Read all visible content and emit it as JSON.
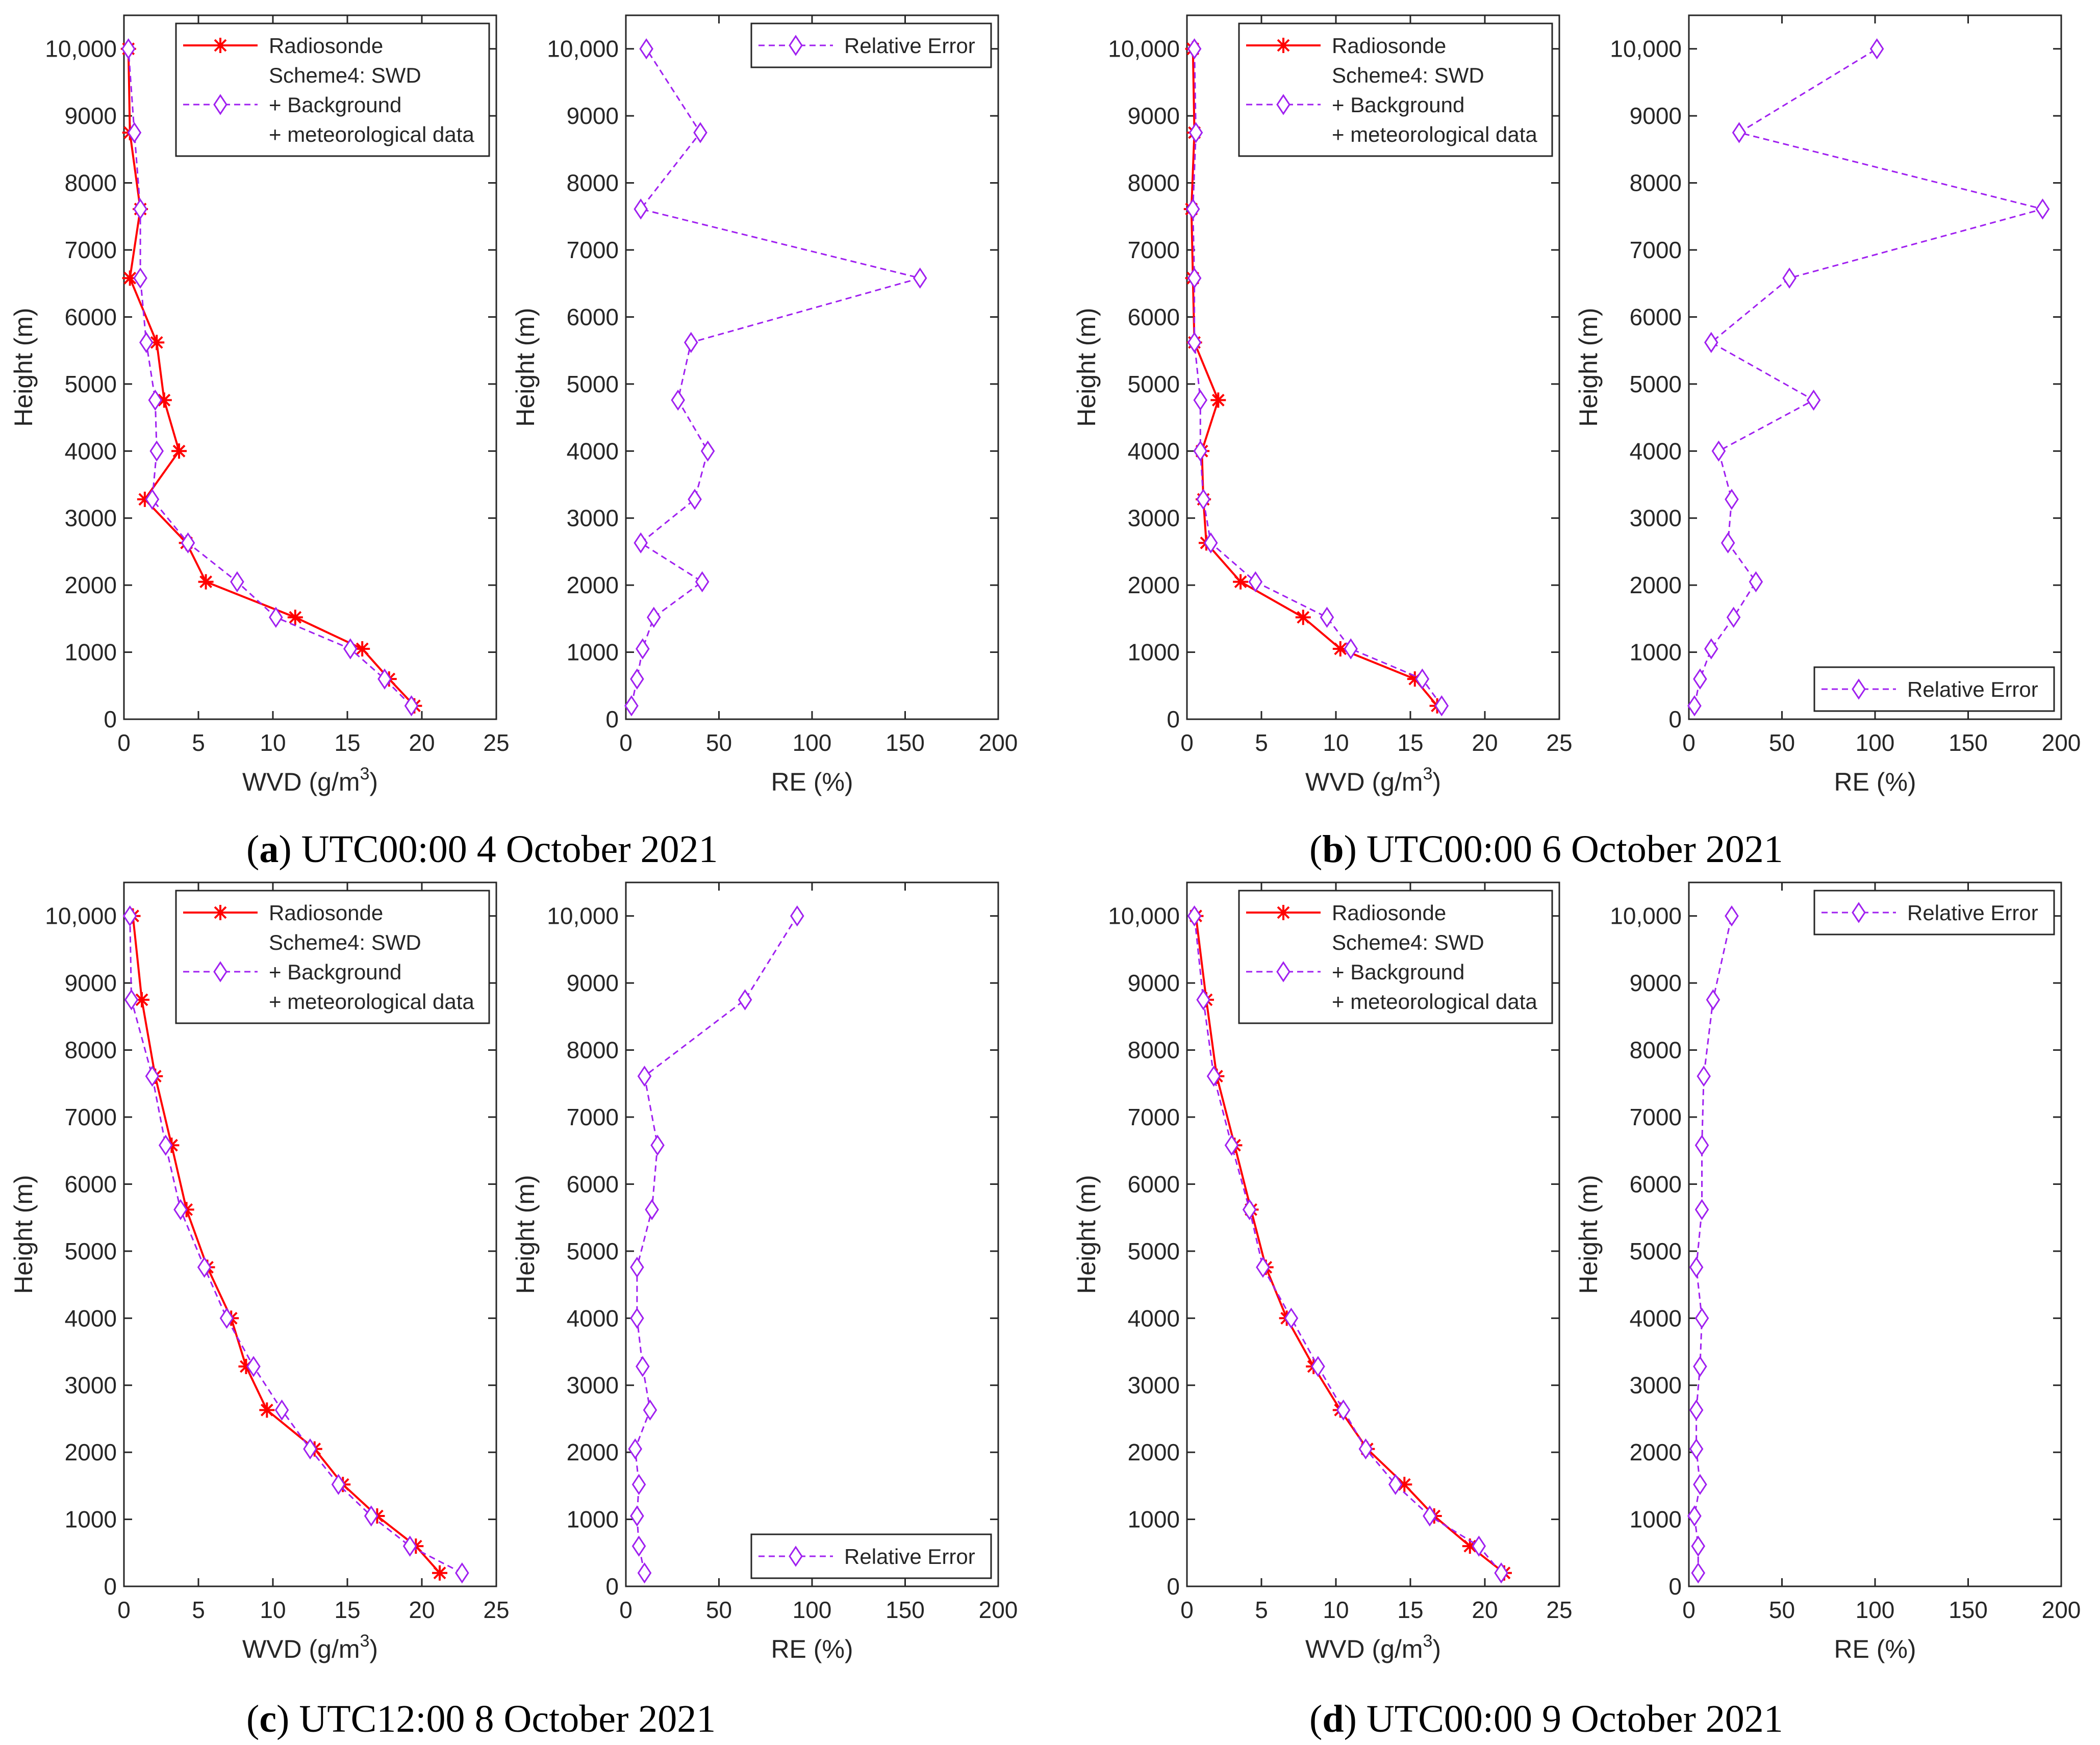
{
  "chart_data": [
    {
      "type": "line",
      "panel": "a",
      "caption": {
        "letter": "a",
        "text": "UTC00:00 4 October 2021"
      },
      "left": {
        "xlabel": "WVD (g/m3)",
        "xlabel_base": "WVD (g/m",
        "xlabel_sup": "3",
        "xlabel_end": ")",
        "ylabel": "Height (m)",
        "xlim": [
          0,
          25
        ],
        "ylim": [
          0,
          10500
        ],
        "xticks": [
          "0",
          "5",
          "10",
          "15",
          "20",
          "25"
        ],
        "yticks": [
          "0",
          "1000",
          "2000",
          "3000",
          "4000",
          "5000",
          "6000",
          "7000",
          "8000",
          "9000",
          "10,000"
        ],
        "heights": [
          200,
          600,
          1050,
          1520,
          2050,
          2630,
          3280,
          4000,
          4760,
          5620,
          6580,
          7610,
          8750,
          10000
        ],
        "legend_position": "top-right",
        "series": [
          {
            "name": "Radiosonde",
            "marker": "asterisk",
            "color": "#ff0000",
            "values": [
              19.5,
              17.8,
              16.0,
              11.5,
              5.5,
              4.2,
              1.4,
              3.7,
              2.7,
              2.2,
              0.4,
              1.1,
              0.4,
              0.3
            ]
          },
          {
            "name": "Scheme4: SWD",
            "legend_lines": [
              "Scheme4: SWD",
              "+ Background",
              "+ meteorological data"
            ],
            "marker": "diamond",
            "color": "#a020f0",
            "values": [
              19.3,
              17.5,
              15.2,
              10.2,
              7.6,
              4.3,
              1.9,
              2.2,
              2.1,
              1.5,
              1.1,
              1.1,
              0.7,
              0.3
            ]
          }
        ]
      },
      "right": {
        "xlabel": "RE (%)",
        "ylabel": "Height (m)",
        "xlim": [
          0,
          200
        ],
        "ylim": [
          0,
          10500
        ],
        "xticks": [
          "0",
          "50",
          "100",
          "150",
          "200"
        ],
        "yticks": [
          "0",
          "1000",
          "2000",
          "3000",
          "4000",
          "5000",
          "6000",
          "7000",
          "8000",
          "9000",
          "10,000"
        ],
        "heights": [
          200,
          600,
          1050,
          1520,
          2050,
          2630,
          3280,
          4000,
          4760,
          5620,
          6580,
          7610,
          8750,
          10000
        ],
        "legend_position": "top-right",
        "series": [
          {
            "name": "Relative Error",
            "marker": "diamond",
            "color": "#a020f0",
            "values": [
              3,
              6,
              9,
              15,
              41,
              8,
              37,
              44,
              28,
              35,
              158,
              8,
              40,
              11
            ]
          }
        ]
      }
    },
    {
      "type": "line",
      "panel": "b",
      "caption": {
        "letter": "b",
        "text": "UTC00:00 6 October 2021"
      },
      "left": {
        "xlabel": "WVD (g/m3)",
        "xlabel_base": "WVD (g/m",
        "xlabel_sup": "3",
        "xlabel_end": ")",
        "ylabel": "Height (m)",
        "xlim": [
          0,
          25
        ],
        "ylim": [
          0,
          10500
        ],
        "xticks": [
          "0",
          "5",
          "10",
          "15",
          "20",
          "25"
        ],
        "yticks": [
          "0",
          "1000",
          "2000",
          "3000",
          "4000",
          "5000",
          "6000",
          "7000",
          "8000",
          "9000",
          "10,000"
        ],
        "heights": [
          200,
          600,
          1050,
          1520,
          2050,
          2630,
          3280,
          4000,
          4760,
          5620,
          6580,
          7610,
          8750,
          10000
        ],
        "legend_position": "top-right",
        "series": [
          {
            "name": "Radiosonde",
            "marker": "asterisk",
            "color": "#ff0000",
            "values": [
              16.8,
              15.3,
              10.3,
              7.8,
              3.6,
              1.3,
              1.1,
              1.0,
              2.1,
              0.5,
              0.4,
              0.3,
              0.5,
              0.4
            ]
          },
          {
            "name": "Scheme4: SWD",
            "legend_lines": [
              "Scheme4: SWD",
              "+ Background",
              "+ meteorological data"
            ],
            "marker": "diamond",
            "color": "#a020f0",
            "values": [
              17.1,
              15.8,
              11.0,
              9.4,
              4.6,
              1.6,
              1.1,
              0.9,
              0.9,
              0.5,
              0.5,
              0.4,
              0.6,
              0.5
            ]
          }
        ]
      },
      "right": {
        "xlabel": "RE (%)",
        "ylabel": "Height (m)",
        "xlim": [
          0,
          200
        ],
        "ylim": [
          0,
          10500
        ],
        "xticks": [
          "0",
          "50",
          "100",
          "150",
          "200"
        ],
        "yticks": [
          "0",
          "1000",
          "2000",
          "3000",
          "4000",
          "5000",
          "6000",
          "7000",
          "8000",
          "9000",
          "10,000"
        ],
        "heights": [
          200,
          600,
          1050,
          1520,
          2050,
          2630,
          3280,
          4000,
          4760,
          5620,
          6580,
          7610,
          8750,
          10000
        ],
        "legend_position": "bottom-right",
        "series": [
          {
            "name": "Relative Error",
            "marker": "diamond",
            "color": "#a020f0",
            "values": [
              3,
              6,
              12,
              24,
              36,
              21,
              23,
              16,
              67,
              12,
              54,
              190,
              27,
              101
            ]
          }
        ]
      }
    },
    {
      "type": "line",
      "panel": "c",
      "caption": {
        "letter": "c",
        "text": "UTC12:00 8 October 2021"
      },
      "left": {
        "xlabel": "WVD (g/m3)",
        "xlabel_base": "WVD (g/m",
        "xlabel_sup": "3",
        "xlabel_end": ")",
        "ylabel": "Height (m)",
        "xlim": [
          0,
          25
        ],
        "ylim": [
          0,
          10500
        ],
        "xticks": [
          "0",
          "5",
          "10",
          "15",
          "20",
          "25"
        ],
        "yticks": [
          "0",
          "1000",
          "2000",
          "3000",
          "4000",
          "5000",
          "6000",
          "7000",
          "8000",
          "9000",
          "10,000"
        ],
        "heights": [
          200,
          600,
          1050,
          1520,
          2050,
          2630,
          3280,
          4000,
          4760,
          5620,
          6580,
          7610,
          8750,
          10000
        ],
        "legend_position": "top-right",
        "series": [
          {
            "name": "Radiosonde",
            "marker": "asterisk",
            "color": "#ff0000",
            "values": [
              21.2,
              19.6,
              17.0,
              14.7,
              12.8,
              9.6,
              8.2,
              7.2,
              5.6,
              4.2,
              3.2,
              2.1,
              1.2,
              0.6
            ]
          },
          {
            "name": "Scheme4: SWD",
            "legend_lines": [
              "Scheme4: SWD",
              "+ Background",
              "+ meteorological data"
            ],
            "marker": "diamond",
            "color": "#a020f0",
            "values": [
              22.7,
              19.2,
              16.6,
              14.4,
              12.5,
              10.6,
              8.7,
              6.9,
              5.4,
              3.8,
              2.8,
              1.9,
              0.5,
              0.4
            ]
          }
        ]
      },
      "right": {
        "xlabel": "RE (%)",
        "ylabel": "Height (m)",
        "xlim": [
          0,
          200
        ],
        "ylim": [
          0,
          10500
        ],
        "xticks": [
          "0",
          "50",
          "100",
          "150",
          "200"
        ],
        "yticks": [
          "0",
          "1000",
          "2000",
          "3000",
          "4000",
          "5000",
          "6000",
          "7000",
          "8000",
          "9000",
          "10,000"
        ],
        "heights": [
          200,
          600,
          1050,
          1520,
          2050,
          2630,
          3280,
          4000,
          4760,
          5620,
          6580,
          7610,
          8750,
          10000
        ],
        "legend_position": "bottom-right",
        "series": [
          {
            "name": "Relative Error",
            "marker": "diamond",
            "color": "#a020f0",
            "values": [
              10,
              7,
              6,
              7,
              5,
              13,
              9,
              6,
              6,
              14,
              17,
              10,
              64,
              92
            ]
          }
        ]
      }
    },
    {
      "type": "line",
      "panel": "d",
      "caption": {
        "letter": "d",
        "text": "UTC00:00 9 October 2021"
      },
      "left": {
        "xlabel": "WVD (g/m3)",
        "xlabel_base": "WVD (g/m",
        "xlabel_sup": "3",
        "xlabel_end": ")",
        "ylabel": "Height (m)",
        "xlim": [
          0,
          25
        ],
        "ylim": [
          0,
          10500
        ],
        "xticks": [
          "0",
          "5",
          "10",
          "15",
          "20",
          "25"
        ],
        "yticks": [
          "0",
          "1000",
          "2000",
          "3000",
          "4000",
          "5000",
          "6000",
          "7000",
          "8000",
          "9000",
          "10,000"
        ],
        "heights": [
          200,
          600,
          1050,
          1520,
          2050,
          2630,
          3280,
          4000,
          4760,
          5620,
          6580,
          7610,
          8750,
          10000
        ],
        "legend_position": "top-right",
        "series": [
          {
            "name": "Radiosonde",
            "marker": "asterisk",
            "color": "#ff0000",
            "values": [
              21.3,
              19.0,
              16.6,
              14.6,
              12.1,
              10.3,
              8.5,
              6.7,
              5.3,
              4.3,
              3.2,
              2.0,
              1.3,
              0.6
            ]
          },
          {
            "name": "Scheme4: SWD",
            "legend_lines": [
              "Scheme4: SWD",
              "+ Background",
              "+ meteorological data"
            ],
            "marker": "diamond",
            "color": "#a020f0",
            "values": [
              21.1,
              19.6,
              16.3,
              14.0,
              12.0,
              10.5,
              8.8,
              7.0,
              5.1,
              4.2,
              3.0,
              1.8,
              1.1,
              0.5
            ]
          }
        ]
      },
      "right": {
        "xlabel": "RE (%)",
        "ylabel": "Height (m)",
        "xlim": [
          0,
          200
        ],
        "ylim": [
          0,
          10500
        ],
        "xticks": [
          "0",
          "50",
          "100",
          "150",
          "200"
        ],
        "yticks": [
          "0",
          "1000",
          "2000",
          "3000",
          "4000",
          "5000",
          "6000",
          "7000",
          "8000",
          "9000",
          "10,000"
        ],
        "heights": [
          200,
          600,
          1050,
          1520,
          2050,
          2630,
          3280,
          4000,
          4760,
          5620,
          6580,
          7610,
          8750,
          10000
        ],
        "legend_position": "top-right",
        "series": [
          {
            "name": "Relative Error",
            "marker": "diamond",
            "color": "#a020f0",
            "values": [
              5,
              5,
              3,
              6,
              4,
              4,
              6,
              7,
              4,
              7,
              7,
              8,
              13,
              23
            ]
          }
        ]
      }
    }
  ]
}
